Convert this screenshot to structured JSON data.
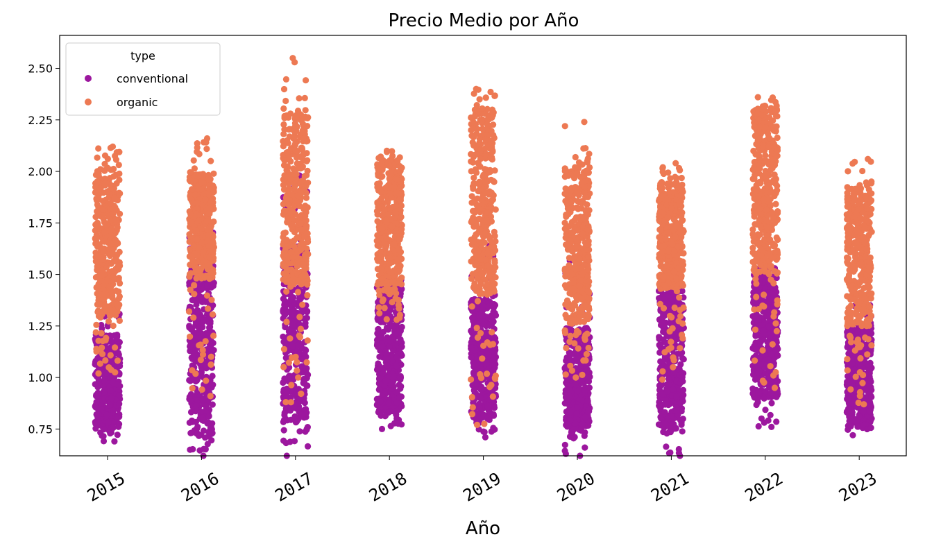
{
  "chart_data": {
    "type": "scatter",
    "subtype": "strip",
    "title": "Precio Medio por Año",
    "xlabel": "Año",
    "ylabel": "",
    "categories": [
      "2015",
      "2016",
      "2017",
      "2018",
      "2019",
      "2020",
      "2021",
      "2022",
      "2023"
    ],
    "ylim": [
      0.62,
      2.66
    ],
    "yticks": [
      "0.75",
      "1.00",
      "1.25",
      "1.50",
      "1.75",
      "2.00",
      "2.25",
      "2.50"
    ],
    "ytick_values": [
      0.75,
      1.0,
      1.25,
      1.5,
      1.75,
      2.0,
      2.25,
      2.5
    ],
    "grid": false,
    "legend": {
      "title": "type",
      "placement": "top-left",
      "entries": [
        "conventional",
        "organic"
      ]
    },
    "series": [
      {
        "name": "conventional",
        "color": "#9c179e",
        "range_low": [
          0.69,
          0.62,
          0.62,
          0.75,
          0.71,
          0.62,
          0.62,
          0.76,
          0.72
        ],
        "range_high": [
          1.34,
          1.77,
          1.98,
          1.48,
          1.64,
          1.57,
          1.42,
          1.53,
          1.46
        ],
        "core_low": [
          0.76,
          0.72,
          0.78,
          0.83,
          0.8,
          0.74,
          0.75,
          0.9,
          0.78
        ],
        "core_high": [
          1.21,
          1.55,
          1.64,
          1.45,
          1.38,
          1.24,
          1.42,
          1.5,
          1.25
        ]
      },
      {
        "name": "organic",
        "color": "#ed7953",
        "range_low": [
          1.02,
          0.91,
          0.88,
          1.28,
          0.77,
          1.0,
          0.99,
          0.95,
          0.87
        ],
        "range_high": [
          2.12,
          2.16,
          2.55,
          2.1,
          2.4,
          2.24,
          2.04,
          2.36,
          2.06
        ],
        "core_low": [
          1.3,
          1.48,
          1.45,
          1.45,
          1.4,
          1.27,
          1.43,
          1.5,
          1.25
        ],
        "core_high": [
          2.02,
          1.99,
          2.28,
          2.05,
          2.3,
          2.02,
          1.95,
          2.3,
          1.92
        ]
      }
    ]
  }
}
